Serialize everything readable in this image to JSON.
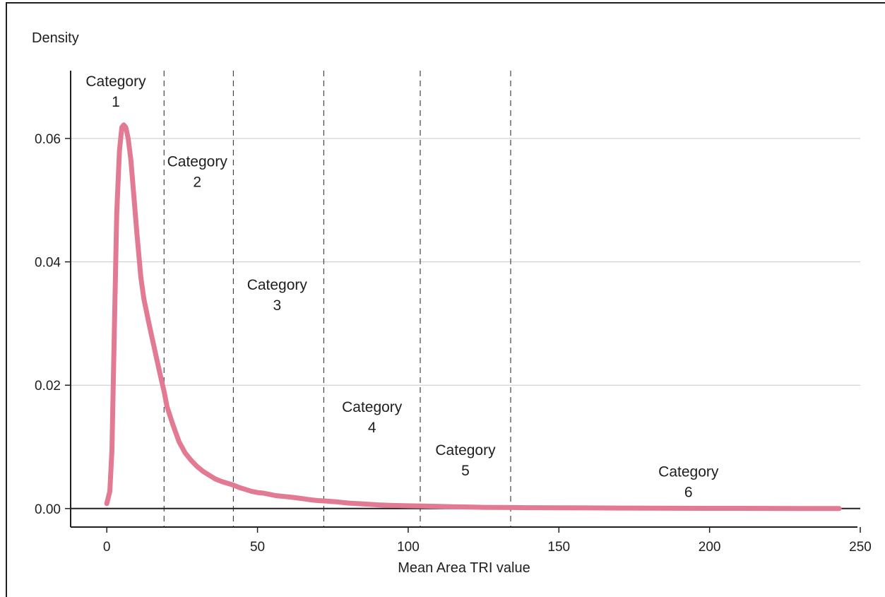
{
  "chart_data": {
    "type": "line",
    "title": "",
    "xlabel": "Mean Area TRI value",
    "ylabel": "Density",
    "xlim": [
      -12,
      250
    ],
    "ylim": [
      -0.003,
      0.071
    ],
    "xticks": [
      0,
      50,
      100,
      150,
      200,
      250
    ],
    "yticks": [
      0.0,
      0.02,
      0.04,
      0.06
    ],
    "ytick_labels": [
      "0.00",
      "0.02",
      "0.04",
      "0.06"
    ],
    "grid": "horizontal",
    "line_color": "#e37a93",
    "category_boundaries": [
      19,
      42,
      72,
      104,
      134
    ],
    "categories": [
      {
        "line1": "Category",
        "line2": "1",
        "x": 3,
        "y": 0.0685
      },
      {
        "line1": "Category",
        "line2": "2",
        "x": 30,
        "y": 0.0555
      },
      {
        "line1": "Category",
        "line2": "3",
        "x": 56.5,
        "y": 0.0355
      },
      {
        "line1": "Category",
        "line2": "4",
        "x": 88,
        "y": 0.0157
      },
      {
        "line1": "Category",
        "line2": "5",
        "x": 119,
        "y": 0.0087
      },
      {
        "line1": "Category",
        "line2": "6",
        "x": 193,
        "y": 0.0052
      }
    ],
    "series": [
      {
        "x": [
          0,
          1,
          1.7,
          2.5,
          3.3,
          4.2,
          5,
          5.6,
          6.3,
          7.1,
          8,
          9.1,
          10,
          11.3,
          12.3,
          14,
          16,
          17.8,
          19,
          20,
          22,
          24,
          26,
          28,
          30,
          32,
          34,
          36,
          38,
          40,
          42,
          44,
          46,
          48,
          50,
          52,
          54,
          56,
          58,
          60,
          62,
          65,
          68,
          70,
          73,
          76,
          80,
          85,
          90,
          95,
          100,
          105,
          110,
          115,
          120,
          125,
          130,
          135,
          140,
          150,
          160,
          170,
          180,
          190,
          200,
          210,
          220,
          230,
          243
        ],
        "y": [
          0.0008,
          0.0028,
          0.0095,
          0.029,
          0.048,
          0.058,
          0.0618,
          0.0622,
          0.0618,
          0.06,
          0.0565,
          0.05,
          0.0445,
          0.0375,
          0.034,
          0.03,
          0.0255,
          0.0215,
          0.019,
          0.0165,
          0.0135,
          0.0108,
          0.009,
          0.0078,
          0.0068,
          0.006,
          0.0054,
          0.0048,
          0.0044,
          0.0041,
          0.0038,
          0.0034,
          0.0031,
          0.0028,
          0.0026,
          0.0025,
          0.0023,
          0.0021,
          0.002,
          0.0019,
          0.0018,
          0.0016,
          0.0014,
          0.0013,
          0.0012,
          0.0011,
          0.0009,
          0.00075,
          0.0006,
          0.0005,
          0.00045,
          0.0004,
          0.00035,
          0.0003,
          0.00025,
          0.0002,
          0.00018,
          0.00016,
          0.00014,
          0.00012,
          0.0001,
          8e-05,
          6e-05,
          5e-05,
          4e-05,
          3e-05,
          2e-05,
          1e-05,
          0.0
        ]
      }
    ]
  }
}
